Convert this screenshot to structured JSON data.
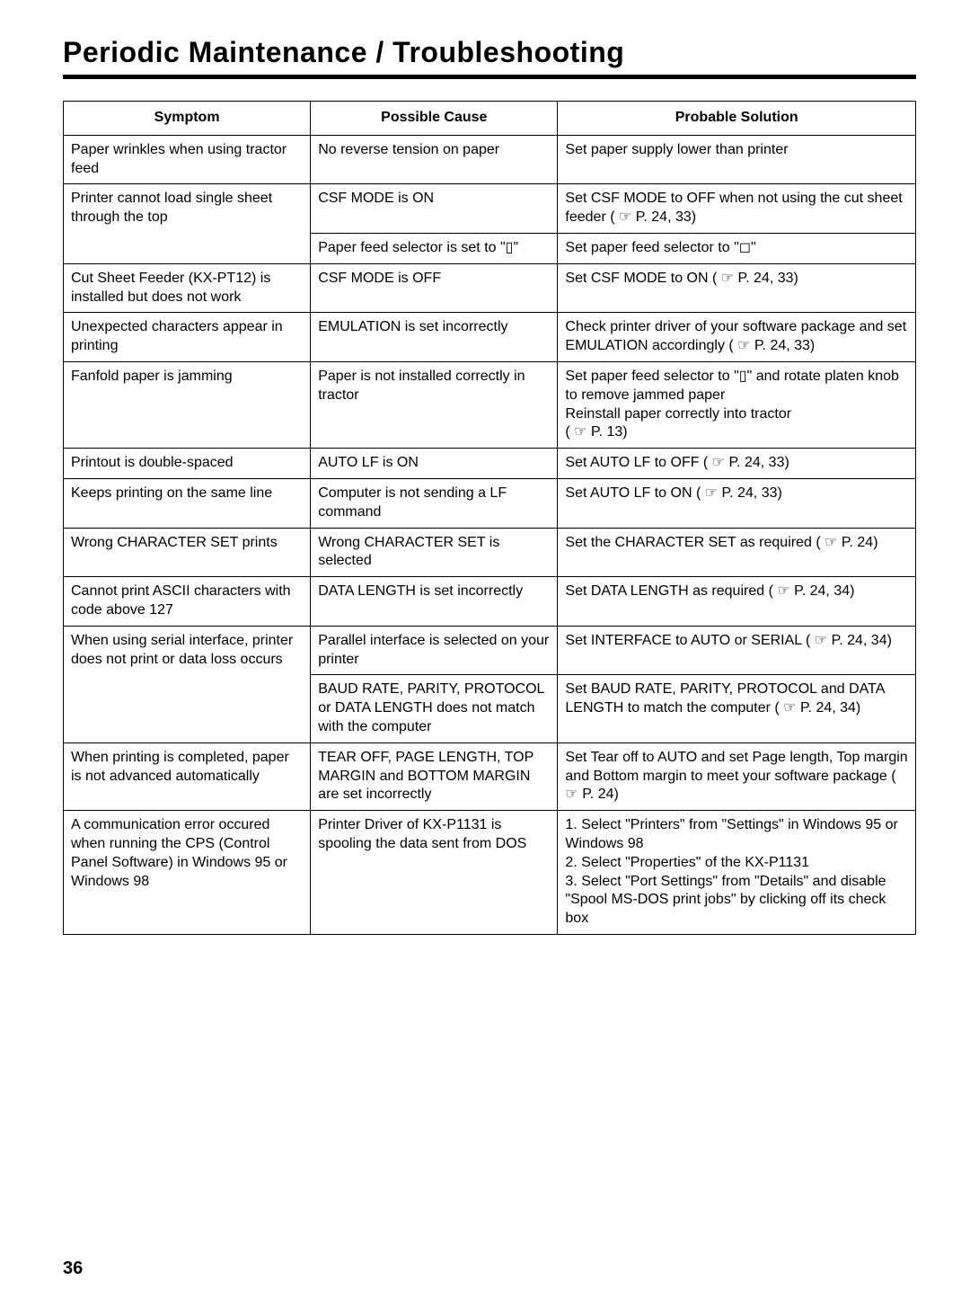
{
  "page": {
    "title": "Periodic Maintenance / Troubleshooting",
    "number": "36"
  },
  "table": {
    "headers": [
      "Symptom",
      "Possible Cause",
      "Probable Solution"
    ],
    "rows": [
      {
        "symptom": "Paper wrinkles when using tractor feed",
        "cause": "No reverse tension on paper",
        "solution": "Set paper supply lower than printer"
      },
      {
        "symptom": "Printer cannot load single sheet through the top",
        "cause": "CSF MODE is ON",
        "solution": "Set CSF MODE to OFF when not using the cut sheet feeder ( ☞ P. 24, 33)"
      },
      {
        "symptom": "",
        "cause": "Paper feed selector is set to \"▯\"",
        "solution": "Set paper feed selector to \"◻\""
      },
      {
        "symptom": "Cut Sheet Feeder (KX-PT12) is installed but does not work",
        "cause": "CSF MODE is OFF",
        "solution": "Set CSF MODE to ON ( ☞ P. 24, 33)"
      },
      {
        "symptom": "Unexpected characters appear in printing",
        "cause": "EMULATION is set incorrectly",
        "solution": "Check printer driver of your software package and set EMULATION accordingly ( ☞ P. 24, 33)"
      },
      {
        "symptom": "Fanfold paper is jamming",
        "cause": "Paper is not installed correctly in tractor",
        "solution": "Set paper feed selector to \"▯\" and rotate platen knob to remove jammed paper\nReinstall paper correctly into tractor\n( ☞ P. 13)"
      },
      {
        "symptom": "Printout is double-spaced",
        "cause": "AUTO LF is ON",
        "solution": "Set AUTO LF to OFF ( ☞ P. 24, 33)"
      },
      {
        "symptom": "Keeps printing on the same line",
        "cause": "Computer is not sending a LF command",
        "solution": "Set AUTO LF to ON ( ☞ P. 24, 33)"
      },
      {
        "symptom": "Wrong CHARACTER SET prints",
        "cause": "Wrong CHARACTER SET is selected",
        "solution": "Set the CHARACTER SET as required ( ☞ P. 24)"
      },
      {
        "symptom": "Cannot print ASCII characters with code above 127",
        "cause": "DATA LENGTH is set incorrectly",
        "solution": "Set DATA LENGTH as required ( ☞ P. 24, 34)"
      },
      {
        "symptom": "When using serial interface, printer does not print or data loss occurs",
        "cause": "Parallel interface is selected on your printer",
        "solution": "Set INTERFACE to AUTO or SERIAL ( ☞ P. 24, 34)"
      },
      {
        "symptom": "",
        "cause": "BAUD RATE, PARITY, PROTOCOL or DATA LENGTH does not match with the computer",
        "solution": "Set BAUD RATE, PARITY, PROTOCOL and DATA LENGTH to match the computer ( ☞ P. 24, 34)"
      },
      {
        "symptom": "When printing is completed, paper is not advanced automatically",
        "cause": "TEAR OFF, PAGE LENGTH, TOP MARGIN and BOTTOM MARGIN are set incorrectly",
        "solution": "Set Tear off to AUTO and set Page length, Top margin and Bottom margin to meet your software package ( ☞ P. 24)"
      },
      {
        "symptom": "A communication error occured when running the CPS (Control Panel Software) in Windows 95 or Windows 98",
        "cause": "Printer Driver of KX-P1131 is spooling the data sent from DOS",
        "solution": "1. Select \"Printers\" from \"Settings\" in Windows 95 or Windows 98\n2. Select \"Properties\" of the KX-P1131\n3. Select \"Port Settings\" from \"Details\" and disable \"Spool MS-DOS print jobs\" by clicking off its check box"
      }
    ]
  }
}
